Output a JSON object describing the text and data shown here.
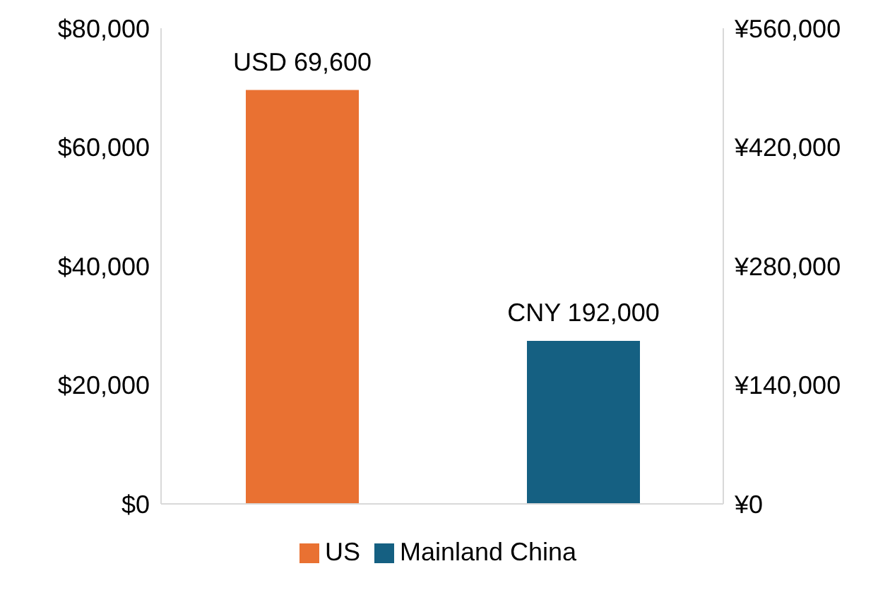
{
  "chart_data": {
    "type": "bar",
    "categories": [
      null,
      null
    ],
    "series": [
      {
        "name": "US",
        "color": "#e97132",
        "values": [
          69600,
          null
        ],
        "value_labels": [
          "USD 69,600",
          null
        ],
        "axis": "y"
      },
      {
        "name": "Mainland China",
        "color": "#156082",
        "values": [
          null,
          192000
        ],
        "value_labels": [
          null,
          "CNY 192,000"
        ],
        "axis": "y2"
      }
    ],
    "ylim": [
      0,
      80000
    ],
    "yticks": [
      {
        "value": 0,
        "label": "$0"
      },
      {
        "value": 20000,
        "label": "$20,000"
      },
      {
        "value": 40000,
        "label": "$40,000"
      },
      {
        "value": 60000,
        "label": "$60,000"
      },
      {
        "value": 80000,
        "label": "$80,000"
      }
    ],
    "y2lim": [
      0,
      560000
    ],
    "y2ticks": [
      {
        "value": 0,
        "label": "¥0"
      },
      {
        "value": 140000,
        "label": "¥140,000"
      },
      {
        "value": 280000,
        "label": "¥280,000"
      },
      {
        "value": 420000,
        "label": "¥420,000"
      },
      {
        "value": 560000,
        "label": "¥560,000"
      }
    ],
    "grid": false,
    "legend": "bottom"
  }
}
